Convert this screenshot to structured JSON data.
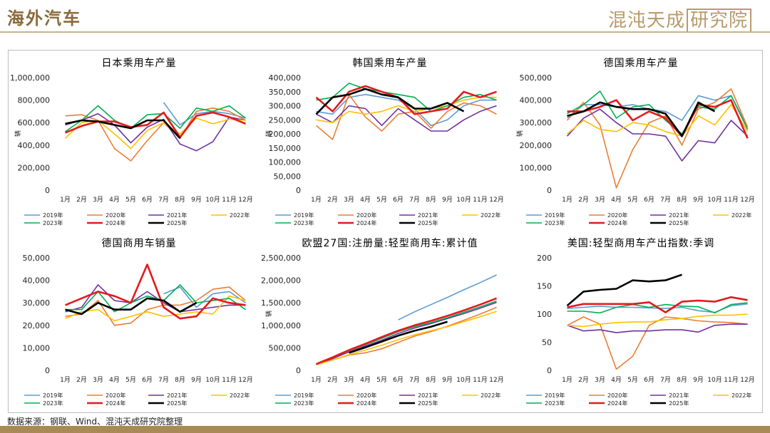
{
  "header": {
    "title": "海外汽车",
    "logo_text": "混沌天成",
    "logo_box": "研究院"
  },
  "footer": {
    "source": "数据来源：钢联、Wind、混沌天成研究院整理"
  },
  "legend": {
    "years": [
      "2019年",
      "2020年",
      "2021年",
      "2022年",
      "2023年",
      "2024年",
      "2025年"
    ],
    "colors": [
      "#5b9bd5",
      "#ed7d31",
      "#7030a0",
      "#ffc000",
      "#00b050",
      "#e41a1c",
      "#000000"
    ]
  },
  "chart_data": [
    {
      "type": "line",
      "title": "日本乘用车产量",
      "ylabel": "辆",
      "ylim": [
        0,
        1000000
      ],
      "yticks": [
        "0",
        "200,000",
        "400,000",
        "600,000",
        "800,000",
        "1,000,000"
      ],
      "ytick_values": [
        0,
        200000,
        400000,
        600000,
        800000,
        1000000
      ],
      "categories": [
        "1月",
        "2月",
        "3月",
        "4月",
        "5月",
        "6月",
        "7月",
        "8月",
        "9月",
        "10月",
        "11月",
        "12月"
      ],
      "series": [
        {
          "name": "2019年",
          "values": [
            null,
            null,
            null,
            null,
            null,
            null,
            780000,
            580000,
            680000,
            700000,
            680000,
            640000
          ]
        },
        {
          "name": "2020年",
          "values": [
            660000,
            670000,
            620000,
            370000,
            260000,
            440000,
            600000,
            460000,
            700000,
            730000,
            700000,
            620000
          ]
        },
        {
          "name": "2021年",
          "values": [
            580000,
            620000,
            680000,
            580000,
            420000,
            560000,
            630000,
            410000,
            350000,
            430000,
            650000,
            620000
          ]
        },
        {
          "name": "2022年",
          "values": [
            460000,
            600000,
            620000,
            500000,
            370000,
            530000,
            600000,
            500000,
            640000,
            590000,
            630000,
            620000
          ]
        },
        {
          "name": "2023年",
          "values": [
            520000,
            620000,
            750000,
            620000,
            550000,
            670000,
            680000,
            550000,
            730000,
            700000,
            750000,
            640000
          ]
        },
        {
          "name": "2024年",
          "values": [
            510000,
            570000,
            610000,
            610000,
            560000,
            580000,
            690000,
            470000,
            660000,
            690000,
            650000,
            590000
          ]
        },
        {
          "name": "2025年",
          "values": [
            590000,
            620000,
            610000,
            580000,
            550000,
            620000,
            620000,
            460000,
            null,
            null,
            null,
            null
          ]
        }
      ]
    },
    {
      "type": "line",
      "title": "韩国乘用车产量",
      "ylabel": "辆",
      "ylim": [
        0,
        400000
      ],
      "yticks": [
        "0",
        "50,000",
        "100,000",
        "150,000",
        "200,000",
        "250,000",
        "300,000",
        "350,000",
        "400,000"
      ],
      "ytick_values": [
        0,
        50000,
        100000,
        150000,
        200000,
        250000,
        300000,
        350000,
        400000
      ],
      "categories": [
        "1月",
        "2月",
        "3月",
        "4月",
        "5月",
        "6月",
        "7月",
        "8月",
        "9月",
        "10月",
        "11月",
        "12月"
      ],
      "series": [
        {
          "name": "2019年",
          "values": [
            280000,
            270000,
            330000,
            340000,
            330000,
            320000,
            290000,
            230000,
            250000,
            300000,
            320000,
            320000
          ]
        },
        {
          "name": "2020年",
          "values": [
            230000,
            180000,
            340000,
            260000,
            210000,
            270000,
            280000,
            220000,
            280000,
            310000,
            300000,
            270000
          ]
        },
        {
          "name": "2021年",
          "values": [
            270000,
            240000,
            300000,
            290000,
            230000,
            290000,
            250000,
            210000,
            210000,
            250000,
            280000,
            300000
          ]
        },
        {
          "name": "2022年",
          "values": [
            250000,
            240000,
            280000,
            270000,
            280000,
            300000,
            280000,
            290000,
            300000,
            320000,
            330000,
            330000
          ]
        },
        {
          "name": "2023年",
          "values": [
            320000,
            330000,
            380000,
            360000,
            350000,
            340000,
            330000,
            280000,
            300000,
            330000,
            340000,
            320000
          ]
        },
        {
          "name": "2024年",
          "values": [
            330000,
            280000,
            350000,
            370000,
            350000,
            330000,
            270000,
            280000,
            290000,
            350000,
            330000,
            350000
          ]
        },
        {
          "name": "2025年",
          "values": [
            270000,
            330000,
            340000,
            360000,
            340000,
            330000,
            290000,
            290000,
            310000,
            280000,
            null,
            null
          ]
        }
      ]
    },
    {
      "type": "line",
      "title": "德国乘用车产量",
      "ylabel": "辆",
      "ylim": [
        0,
        500000
      ],
      "yticks": [
        "0",
        "100,000",
        "200,000",
        "300,000",
        "400,000",
        "500,000"
      ],
      "ytick_values": [
        0,
        100000,
        200000,
        300000,
        400000,
        500000
      ],
      "categories": [
        "1月",
        "2月",
        "3月",
        "4月",
        "5月",
        "6月",
        "7月",
        "8月",
        "9月",
        "10月",
        "11月",
        "12月"
      ],
      "series": [
        {
          "name": "2019年",
          "values": [
            320000,
            380000,
            380000,
            370000,
            380000,
            360000,
            350000,
            310000,
            420000,
            400000,
            420000,
            280000
          ]
        },
        {
          "name": "2020年",
          "values": [
            310000,
            390000,
            290000,
            10000,
            180000,
            300000,
            330000,
            200000,
            360000,
            390000,
            450000,
            280000
          ]
        },
        {
          "name": "2021年",
          "values": [
            240000,
            320000,
            360000,
            300000,
            250000,
            250000,
            240000,
            130000,
            220000,
            210000,
            310000,
            240000
          ]
        },
        {
          "name": "2022年",
          "values": [
            250000,
            310000,
            270000,
            260000,
            300000,
            290000,
            260000,
            240000,
            330000,
            290000,
            380000,
            260000
          ]
        },
        {
          "name": "2023年",
          "values": [
            340000,
            380000,
            440000,
            320000,
            370000,
            380000,
            310000,
            250000,
            370000,
            360000,
            420000,
            270000
          ]
        },
        {
          "name": "2024年",
          "values": [
            350000,
            350000,
            370000,
            400000,
            310000,
            350000,
            320000,
            240000,
            380000,
            370000,
            400000,
            230000
          ]
        },
        {
          "name": "2025年",
          "values": [
            330000,
            350000,
            390000,
            370000,
            360000,
            360000,
            340000,
            240000,
            390000,
            350000,
            null,
            null
          ]
        }
      ]
    },
    {
      "type": "line",
      "title": "德国商用车销量",
      "ylabel": "",
      "ylim": [
        0,
        50000
      ],
      "yticks": [
        "0",
        "10,000",
        "20,000",
        "30,000",
        "40,000",
        "50,000"
      ],
      "ytick_values": [
        0,
        10000,
        20000,
        30000,
        40000,
        50000
      ],
      "categories": [
        "1月",
        "2月",
        "3月",
        "4月",
        "5月",
        "6月",
        "7月",
        "8月",
        "9月",
        "10月",
        "11月",
        "12月"
      ],
      "series": [
        {
          "name": "2019年",
          "values": [
            null,
            null,
            null,
            null,
            null,
            null,
            34000,
            37000,
            28000,
            34000,
            35000,
            30000
          ]
        },
        {
          "name": "2020年",
          "values": [
            24000,
            25000,
            31000,
            20000,
            21000,
            27000,
            29000,
            29000,
            31000,
            36000,
            37000,
            31000
          ]
        },
        {
          "name": "2021年",
          "values": [
            26000,
            28000,
            38000,
            31000,
            30000,
            35000,
            30000,
            26000,
            27000,
            28000,
            29000,
            29000
          ]
        },
        {
          "name": "2022年",
          "values": [
            23000,
            26000,
            27000,
            22000,
            24000,
            26000,
            24000,
            25000,
            26000,
            25000,
            33000,
            31000
          ]
        },
        {
          "name": "2023年",
          "values": [
            27000,
            27000,
            35000,
            26000,
            30000,
            33000,
            31000,
            38000,
            30000,
            31000,
            32000,
            27000
          ]
        },
        {
          "name": "2024年",
          "values": [
            29000,
            32000,
            35000,
            33000,
            30000,
            47000,
            28000,
            23000,
            24000,
            32000,
            30000,
            29000
          ]
        },
        {
          "name": "2025年",
          "values": [
            27000,
            25000,
            30000,
            27000,
            27000,
            32000,
            31000,
            26000,
            30000,
            null,
            null,
            null
          ]
        }
      ]
    },
    {
      "type": "line",
      "title": "欧盟27国:注册量:轻型商用车:累计值",
      "ylabel": "辆",
      "ylim": [
        0,
        2500000
      ],
      "yticks": [
        "0",
        "500,000",
        "1,000,000",
        "1,500,000",
        "2,000,000",
        "2,500,000"
      ],
      "ytick_values": [
        0,
        500000,
        1000000,
        1500000,
        2000000,
        2500000
      ],
      "categories": [
        "1月",
        "2月",
        "3月",
        "4月",
        "5月",
        "6月",
        "7月",
        "8月",
        "9月",
        "10月",
        "11月",
        "12月"
      ],
      "series": [
        {
          "name": "2019年",
          "values": [
            null,
            null,
            null,
            null,
            null,
            1120000,
            1300000,
            1460000,
            1620000,
            1790000,
            1950000,
            2120000
          ]
        },
        {
          "name": "2020年",
          "values": [
            120000,
            230000,
            340000,
            390000,
            480000,
            620000,
            760000,
            860000,
            980000,
            1110000,
            1250000,
            1400000
          ]
        },
        {
          "name": "2021年",
          "values": [
            130000,
            260000,
            410000,
            540000,
            670000,
            820000,
            940000,
            1040000,
            1150000,
            1260000,
            1380000,
            1510000
          ]
        },
        {
          "name": "2022年",
          "values": [
            120000,
            230000,
            350000,
            450000,
            560000,
            680000,
            790000,
            880000,
            970000,
            1080000,
            1190000,
            1310000
          ]
        },
        {
          "name": "2023年",
          "values": [
            140000,
            280000,
            440000,
            570000,
            710000,
            860000,
            970000,
            1060000,
            1170000,
            1290000,
            1410000,
            1540000
          ]
        },
        {
          "name": "2024年",
          "values": [
            140000,
            290000,
            450000,
            590000,
            740000,
            880000,
            1000000,
            1100000,
            1210000,
            1330000,
            1460000,
            1600000
          ]
        },
        {
          "name": "2025年",
          "values": [
            null,
            null,
            390000,
            510000,
            640000,
            770000,
            880000,
            970000,
            1080000,
            null,
            null,
            null
          ]
        }
      ]
    },
    {
      "type": "line",
      "title": "美国:轻型商用车产出指数:季调",
      "ylabel": "",
      "ylim": [
        0,
        200
      ],
      "yticks": [
        "0",
        "50",
        "100",
        "150",
        "200"
      ],
      "ytick_values": [
        0,
        50,
        100,
        150,
        200
      ],
      "categories": [
        "1月",
        "2月",
        "3月",
        "4月",
        "5月",
        "6月",
        "7月",
        "8月",
        "9月",
        "10月",
        "11月",
        "12月"
      ],
      "series": [
        {
          "name": "2019年",
          "values": [
            110,
            112,
            114,
            112,
            112,
            111,
            110,
            112,
            106,
            103,
            115,
            118
          ]
        },
        {
          "name": "2020年",
          "values": [
            80,
            95,
            82,
            2,
            25,
            80,
            95,
            92,
            88,
            86,
            85,
            82
          ]
        },
        {
          "name": "2021年",
          "values": [
            80,
            70,
            72,
            67,
            70,
            70,
            72,
            72,
            68,
            80,
            82,
            82
          ]
        },
        {
          "name": "2022年",
          "values": [
            80,
            78,
            82,
            85,
            86,
            86,
            90,
            92,
            96,
            98,
            98,
            100
          ]
        },
        {
          "name": "2023年",
          "values": [
            105,
            105,
            102,
            112,
            117,
            112,
            117,
            114,
            113,
            102,
            117,
            120
          ]
        },
        {
          "name": "2024年",
          "values": [
            112,
            118,
            118,
            118,
            118,
            121,
            103,
            122,
            124,
            122,
            130,
            125
          ]
        },
        {
          "name": "2025年",
          "values": [
            115,
            140,
            143,
            145,
            160,
            158,
            160,
            170,
            null,
            null,
            null,
            null
          ]
        }
      ]
    }
  ]
}
